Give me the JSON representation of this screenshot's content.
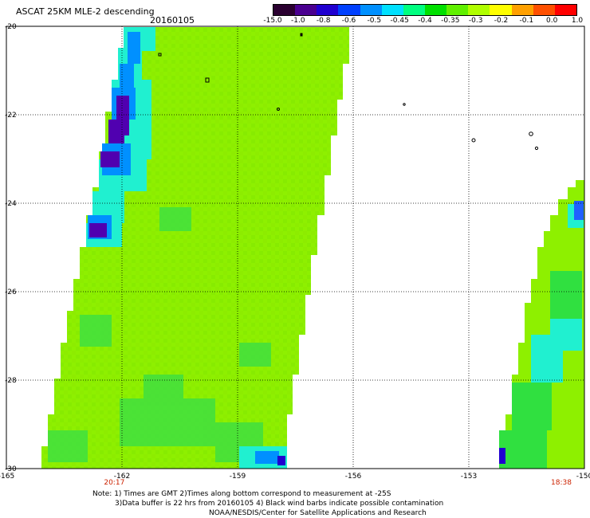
{
  "figure": {
    "title": "ASCAT 25KM MLE-2 descending",
    "date": "20160105"
  },
  "colorbar": {
    "labels": [
      "-15.0",
      "-1.0",
      "-0.8",
      "-0.6",
      "-0.5",
      "-0.45",
      "-0.4",
      "-0.35",
      "-0.3",
      "-0.2",
      "-0.1",
      "0.0",
      "1.0"
    ],
    "colors": [
      "#2a0030",
      "#4a0090",
      "#2000d0",
      "#0040ff",
      "#0090ff",
      "#00e0ff",
      "#00ff80",
      "#00e000",
      "#60f000",
      "#b0ff00",
      "#ffff00",
      "#ffa000",
      "#ff5000",
      "#ff0000"
    ]
  },
  "map": {
    "x_ticks": [
      "-165",
      "-162",
      "-159",
      "-156",
      "-153",
      "-150"
    ],
    "y_ticks": [
      "-20",
      "-22",
      "-24",
      "-26",
      "-28",
      "-30"
    ],
    "lon_range": [
      -165,
      -150
    ],
    "lat_range": [
      -30,
      -20
    ],
    "grid": "dotted",
    "times": [
      {
        "label": "20:17",
        "lon": -162.2
      },
      {
        "label": "18:38",
        "lon": -150.6
      }
    ],
    "time_color": "#cc2200"
  },
  "notes": {
    "line1": "Note: 1) Times are GMT 2)Times along bottom correspond to measurement at -25S",
    "line2": "3)Data buffer is 22 hrs from 20160105 4) Black wind barbs indicate possible contamination",
    "line3": "NOAA/NESDIS/Center for Satellite Applications and Research"
  }
}
